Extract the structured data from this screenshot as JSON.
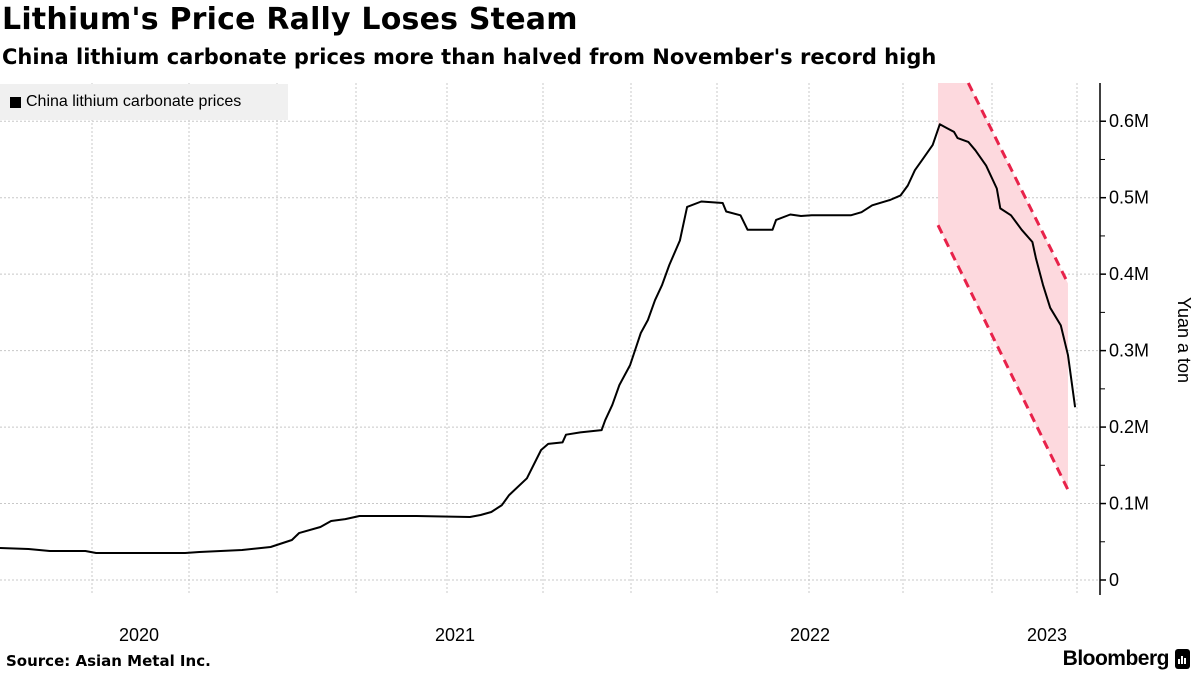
{
  "chart_data": {
    "type": "line",
    "title": "Lithium's Price Rally Loses Steam",
    "subtitle": "China lithium carbonate prices more than halved from November's record high",
    "ylabel": "Yuan a ton",
    "xlabel": "",
    "ylim": [
      0,
      650000
    ],
    "xlim": [
      2020.22,
      2023.31
    ],
    "yticks": [
      {
        "value": 0,
        "label": "0"
      },
      {
        "value": 100000,
        "label": "0.1M"
      },
      {
        "value": 200000,
        "label": "0.2M"
      },
      {
        "value": 300000,
        "label": "0.3M"
      },
      {
        "value": 400000,
        "label": "0.4M"
      },
      {
        "value": 500000,
        "label": "0.5M"
      },
      {
        "value": 600000,
        "label": "0.6M"
      }
    ],
    "xticks": [
      "2020",
      "2021",
      "2022",
      "2023"
    ],
    "grid": true,
    "legend": {
      "position": "top-left",
      "entries": [
        "China lithium carbonate prices"
      ]
    },
    "series": [
      {
        "name": "China lithium carbonate prices",
        "color": "#000000",
        "points": [
          [
            2020.22,
            41800
          ],
          [
            2020.3,
            40500
          ],
          [
            2020.36,
            37900
          ],
          [
            2020.46,
            37900
          ],
          [
            2020.49,
            35300
          ],
          [
            2020.74,
            35300
          ],
          [
            2020.78,
            36600
          ],
          [
            2020.9,
            39200
          ],
          [
            2020.98,
            43100
          ],
          [
            2021.04,
            52300
          ],
          [
            2021.06,
            61400
          ],
          [
            2021.12,
            69300
          ],
          [
            2021.15,
            77100
          ],
          [
            2021.19,
            79700
          ],
          [
            2021.23,
            83700
          ],
          [
            2021.39,
            83700
          ],
          [
            2021.54,
            82400
          ],
          [
            2021.57,
            85000
          ],
          [
            2021.6,
            88900
          ],
          [
            2021.63,
            98000
          ],
          [
            2021.65,
            111000
          ],
          [
            2021.7,
            133000
          ],
          [
            2021.74,
            170000
          ],
          [
            2021.76,
            178000
          ],
          [
            2021.8,
            180000
          ],
          [
            2021.81,
            190000
          ],
          [
            2021.85,
            193000
          ],
          [
            2021.91,
            196000
          ],
          [
            2021.92,
            209000
          ],
          [
            2021.94,
            229000
          ],
          [
            2021.96,
            255000
          ],
          [
            2021.99,
            281000
          ],
          [
            2022.02,
            323000
          ],
          [
            2022.04,
            340000
          ],
          [
            2022.06,
            366000
          ],
          [
            2022.08,
            386000
          ],
          [
            2022.1,
            412000
          ],
          [
            2022.13,
            444000
          ],
          [
            2022.15,
            488000
          ],
          [
            2022.19,
            495000
          ],
          [
            2022.25,
            493000
          ],
          [
            2022.26,
            482000
          ],
          [
            2022.3,
            477000
          ],
          [
            2022.32,
            458000
          ],
          [
            2022.39,
            458000
          ],
          [
            2022.4,
            471000
          ],
          [
            2022.44,
            478000
          ],
          [
            2022.47,
            476000
          ],
          [
            2022.5,
            477000
          ],
          [
            2022.61,
            477000
          ],
          [
            2022.64,
            481000
          ],
          [
            2022.67,
            490000
          ],
          [
            2022.72,
            497000
          ],
          [
            2022.75,
            503000
          ],
          [
            2022.77,
            516000
          ],
          [
            2022.79,
            536000
          ],
          [
            2022.81,
            549000
          ],
          [
            2022.84,
            569000
          ],
          [
            2022.86,
            596000
          ],
          [
            2022.88,
            591000
          ],
          [
            2022.9,
            586000
          ],
          [
            2022.91,
            578000
          ],
          [
            2022.94,
            573000
          ],
          [
            2022.96,
            562000
          ],
          [
            2022.99,
            542000
          ],
          [
            2023.02,
            512000
          ],
          [
            2023.03,
            486000
          ],
          [
            2023.06,
            477000
          ],
          [
            2023.09,
            458000
          ],
          [
            2023.12,
            442000
          ],
          [
            2023.13,
            421000
          ],
          [
            2023.15,
            386000
          ],
          [
            2023.17,
            356000
          ],
          [
            2023.2,
            333000
          ],
          [
            2023.22,
            294000
          ],
          [
            2023.24,
            226000
          ]
        ]
      }
    ],
    "annotations": {
      "shaded_band": {
        "color": "#fdd9de",
        "x_start": 2022.855,
        "x_end": 2023.22
      },
      "upper_trend": {
        "color": "#e8224a",
        "style": "dashed",
        "from": [
          2022.94,
          650000
        ],
        "to": [
          2023.22,
          388000
        ]
      },
      "lower_trend": {
        "color": "#e8224a",
        "style": "dashed",
        "from": [
          2022.855,
          464000
        ],
        "to": [
          2023.22,
          118000
        ]
      }
    }
  },
  "footer": {
    "source": "Source: Asian Metal Inc.",
    "brand": "Bloomberg"
  }
}
